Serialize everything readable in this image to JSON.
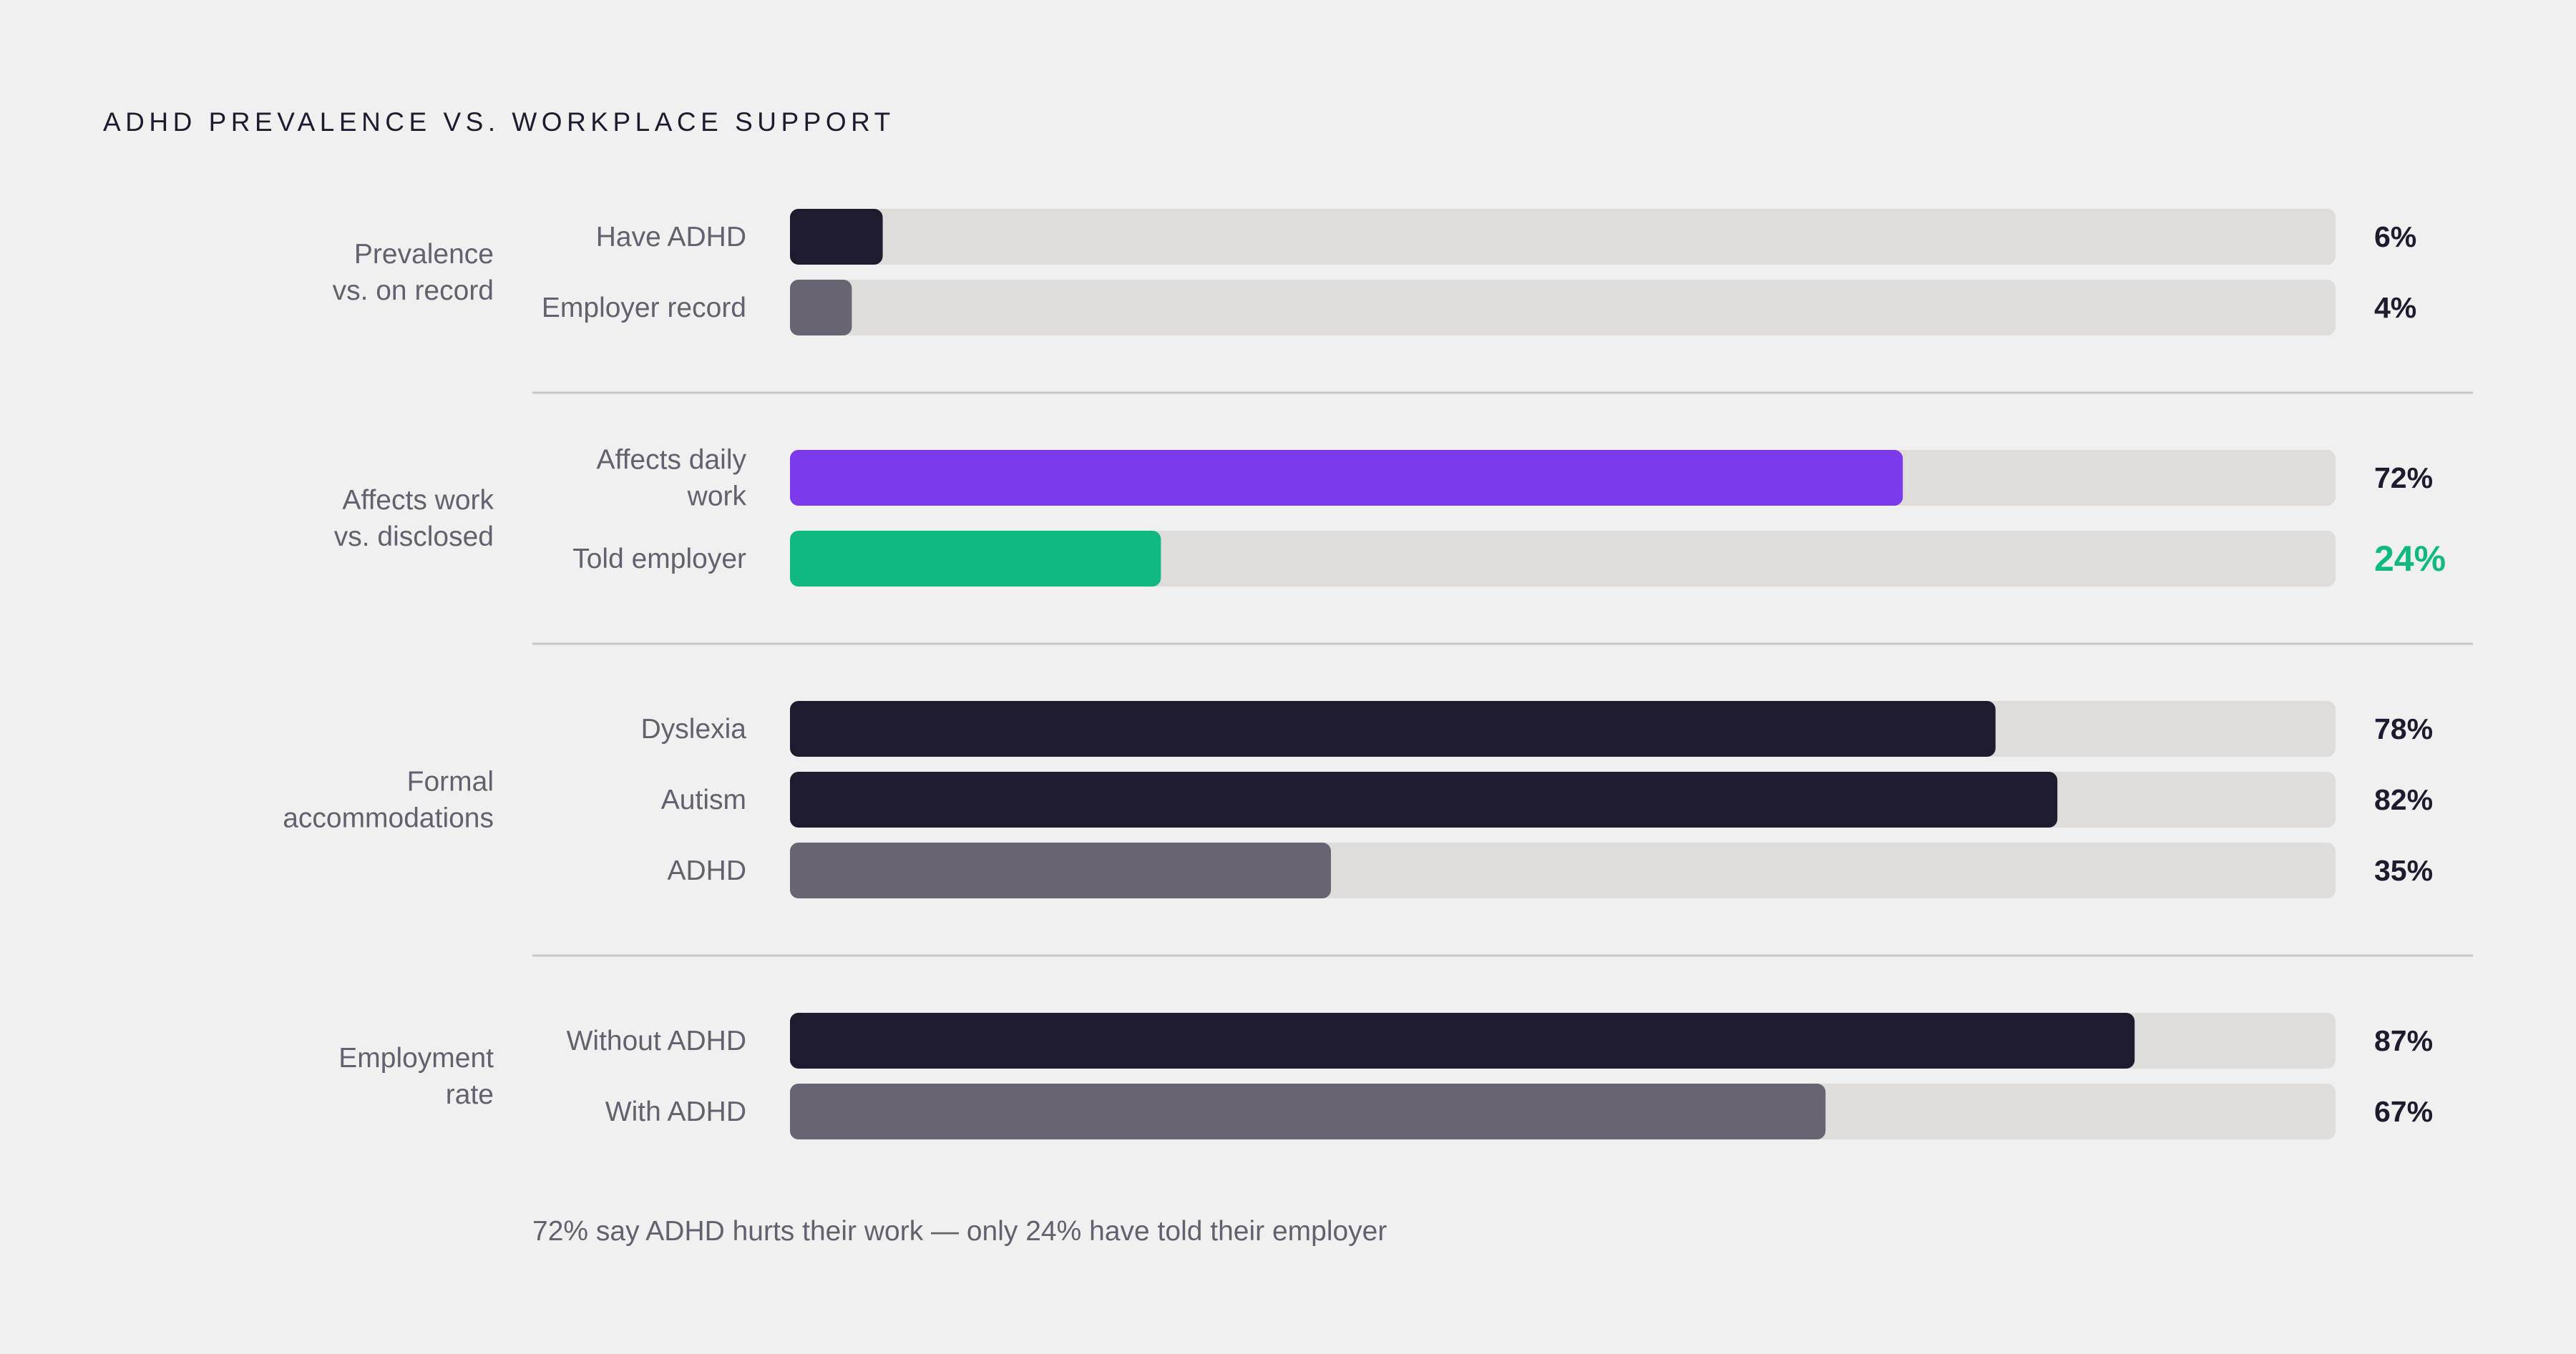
{
  "colors": {
    "background": "#f0f0f0",
    "track": "#dfdcd9",
    "dark": "#1e1b2e",
    "muted": "#686472",
    "purple": "#7c3aed",
    "green": "#10b981",
    "label": "#64606e",
    "divider": "#c9c7c5"
  },
  "chart_data": {
    "type": "bar",
    "orientation": "horizontal",
    "title": "ADHD PREVALENCE VS. WORKPLACE SUPPORT",
    "xlim": [
      0,
      100
    ],
    "unit": "%",
    "groups": [
      {
        "label_lines": [
          "Prevalence",
          "vs. on record"
        ],
        "bars": [
          {
            "label_lines": [
              "Have ADHD"
            ],
            "value": 6,
            "display": "6%",
            "color": "#1e1b2e",
            "value_color": "#1e1b2e"
          },
          {
            "label_lines": [
              "Employer record"
            ],
            "value": 4,
            "display": "4%",
            "color": "#686472",
            "value_color": "#1e1b2e"
          }
        ]
      },
      {
        "label_lines": [
          "Affects work",
          "vs. disclosed"
        ],
        "bars": [
          {
            "label_lines": [
              "Affects daily",
              "work"
            ],
            "value": 72,
            "display": "72%",
            "color": "#7c3aed",
            "value_color": "#1e1b2e"
          },
          {
            "label_lines": [
              "Told employer"
            ],
            "value": 24,
            "display": "24%",
            "color": "#10b981",
            "value_color": "#10b981",
            "emphasis": true
          }
        ]
      },
      {
        "label_lines": [
          "Formal",
          "accommodations"
        ],
        "bars": [
          {
            "label_lines": [
              "Dyslexia"
            ],
            "value": 78,
            "display": "78%",
            "color": "#1e1b2e",
            "value_color": "#1e1b2e"
          },
          {
            "label_lines": [
              "Autism"
            ],
            "value": 82,
            "display": "82%",
            "color": "#1e1b2e",
            "value_color": "#1e1b2e"
          },
          {
            "label_lines": [
              "ADHD"
            ],
            "value": 35,
            "display": "35%",
            "color": "#686472",
            "value_color": "#1e1b2e"
          }
        ]
      },
      {
        "label_lines": [
          "Employment",
          "rate"
        ],
        "bars": [
          {
            "label_lines": [
              "Without ADHD"
            ],
            "value": 87,
            "display": "87%",
            "color": "#1e1b2e",
            "value_color": "#1e1b2e"
          },
          {
            "label_lines": [
              "With ADHD"
            ],
            "value": 67,
            "display": "67%",
            "color": "#686472",
            "value_color": "#1e1b2e"
          }
        ]
      }
    ],
    "footnote": "72% say ADHD hurts their work — only 24% have told their employer"
  }
}
